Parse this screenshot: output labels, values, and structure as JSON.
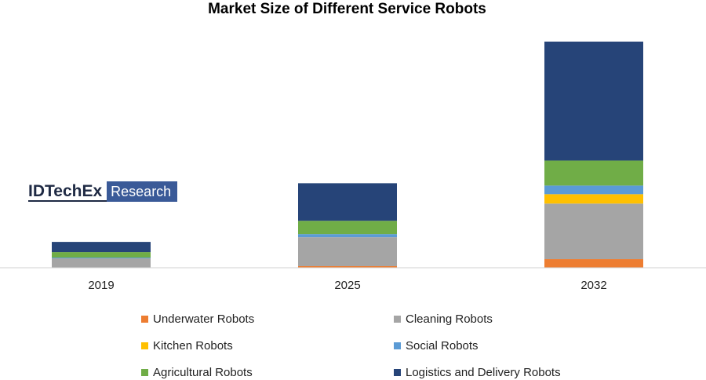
{
  "chart_data": {
    "type": "bar",
    "stacked": true,
    "title": "Market Size of Different Service Robots",
    "xlabel": "",
    "ylabel": "",
    "categories": [
      "2019",
      "2025",
      "2032"
    ],
    "ylim": [
      0,
      290
    ],
    "grid": false,
    "legend_position": "bottom",
    "series": [
      {
        "name": "Underwater Robots",
        "color": "#ed7d31",
        "values": [
          0,
          2,
          11
        ]
      },
      {
        "name": "Cleaning Robots",
        "color": "#a5a5a5",
        "values": [
          12,
          37,
          71
        ]
      },
      {
        "name": "Kitchen Robots",
        "color": "#ffc000",
        "values": [
          0,
          0,
          12
        ]
      },
      {
        "name": "Social Robots",
        "color": "#5b9bd5",
        "values": [
          1,
          4,
          11
        ]
      },
      {
        "name": "Agricultural Robots",
        "color": "#70ad47",
        "values": [
          7,
          17,
          32
        ]
      },
      {
        "name": "Logistics and Delivery Robots",
        "color": "#264478",
        "values": [
          13,
          48,
          152
        ]
      }
    ]
  },
  "watermark": {
    "brand": "IDTechEx",
    "tag": "Research"
  }
}
